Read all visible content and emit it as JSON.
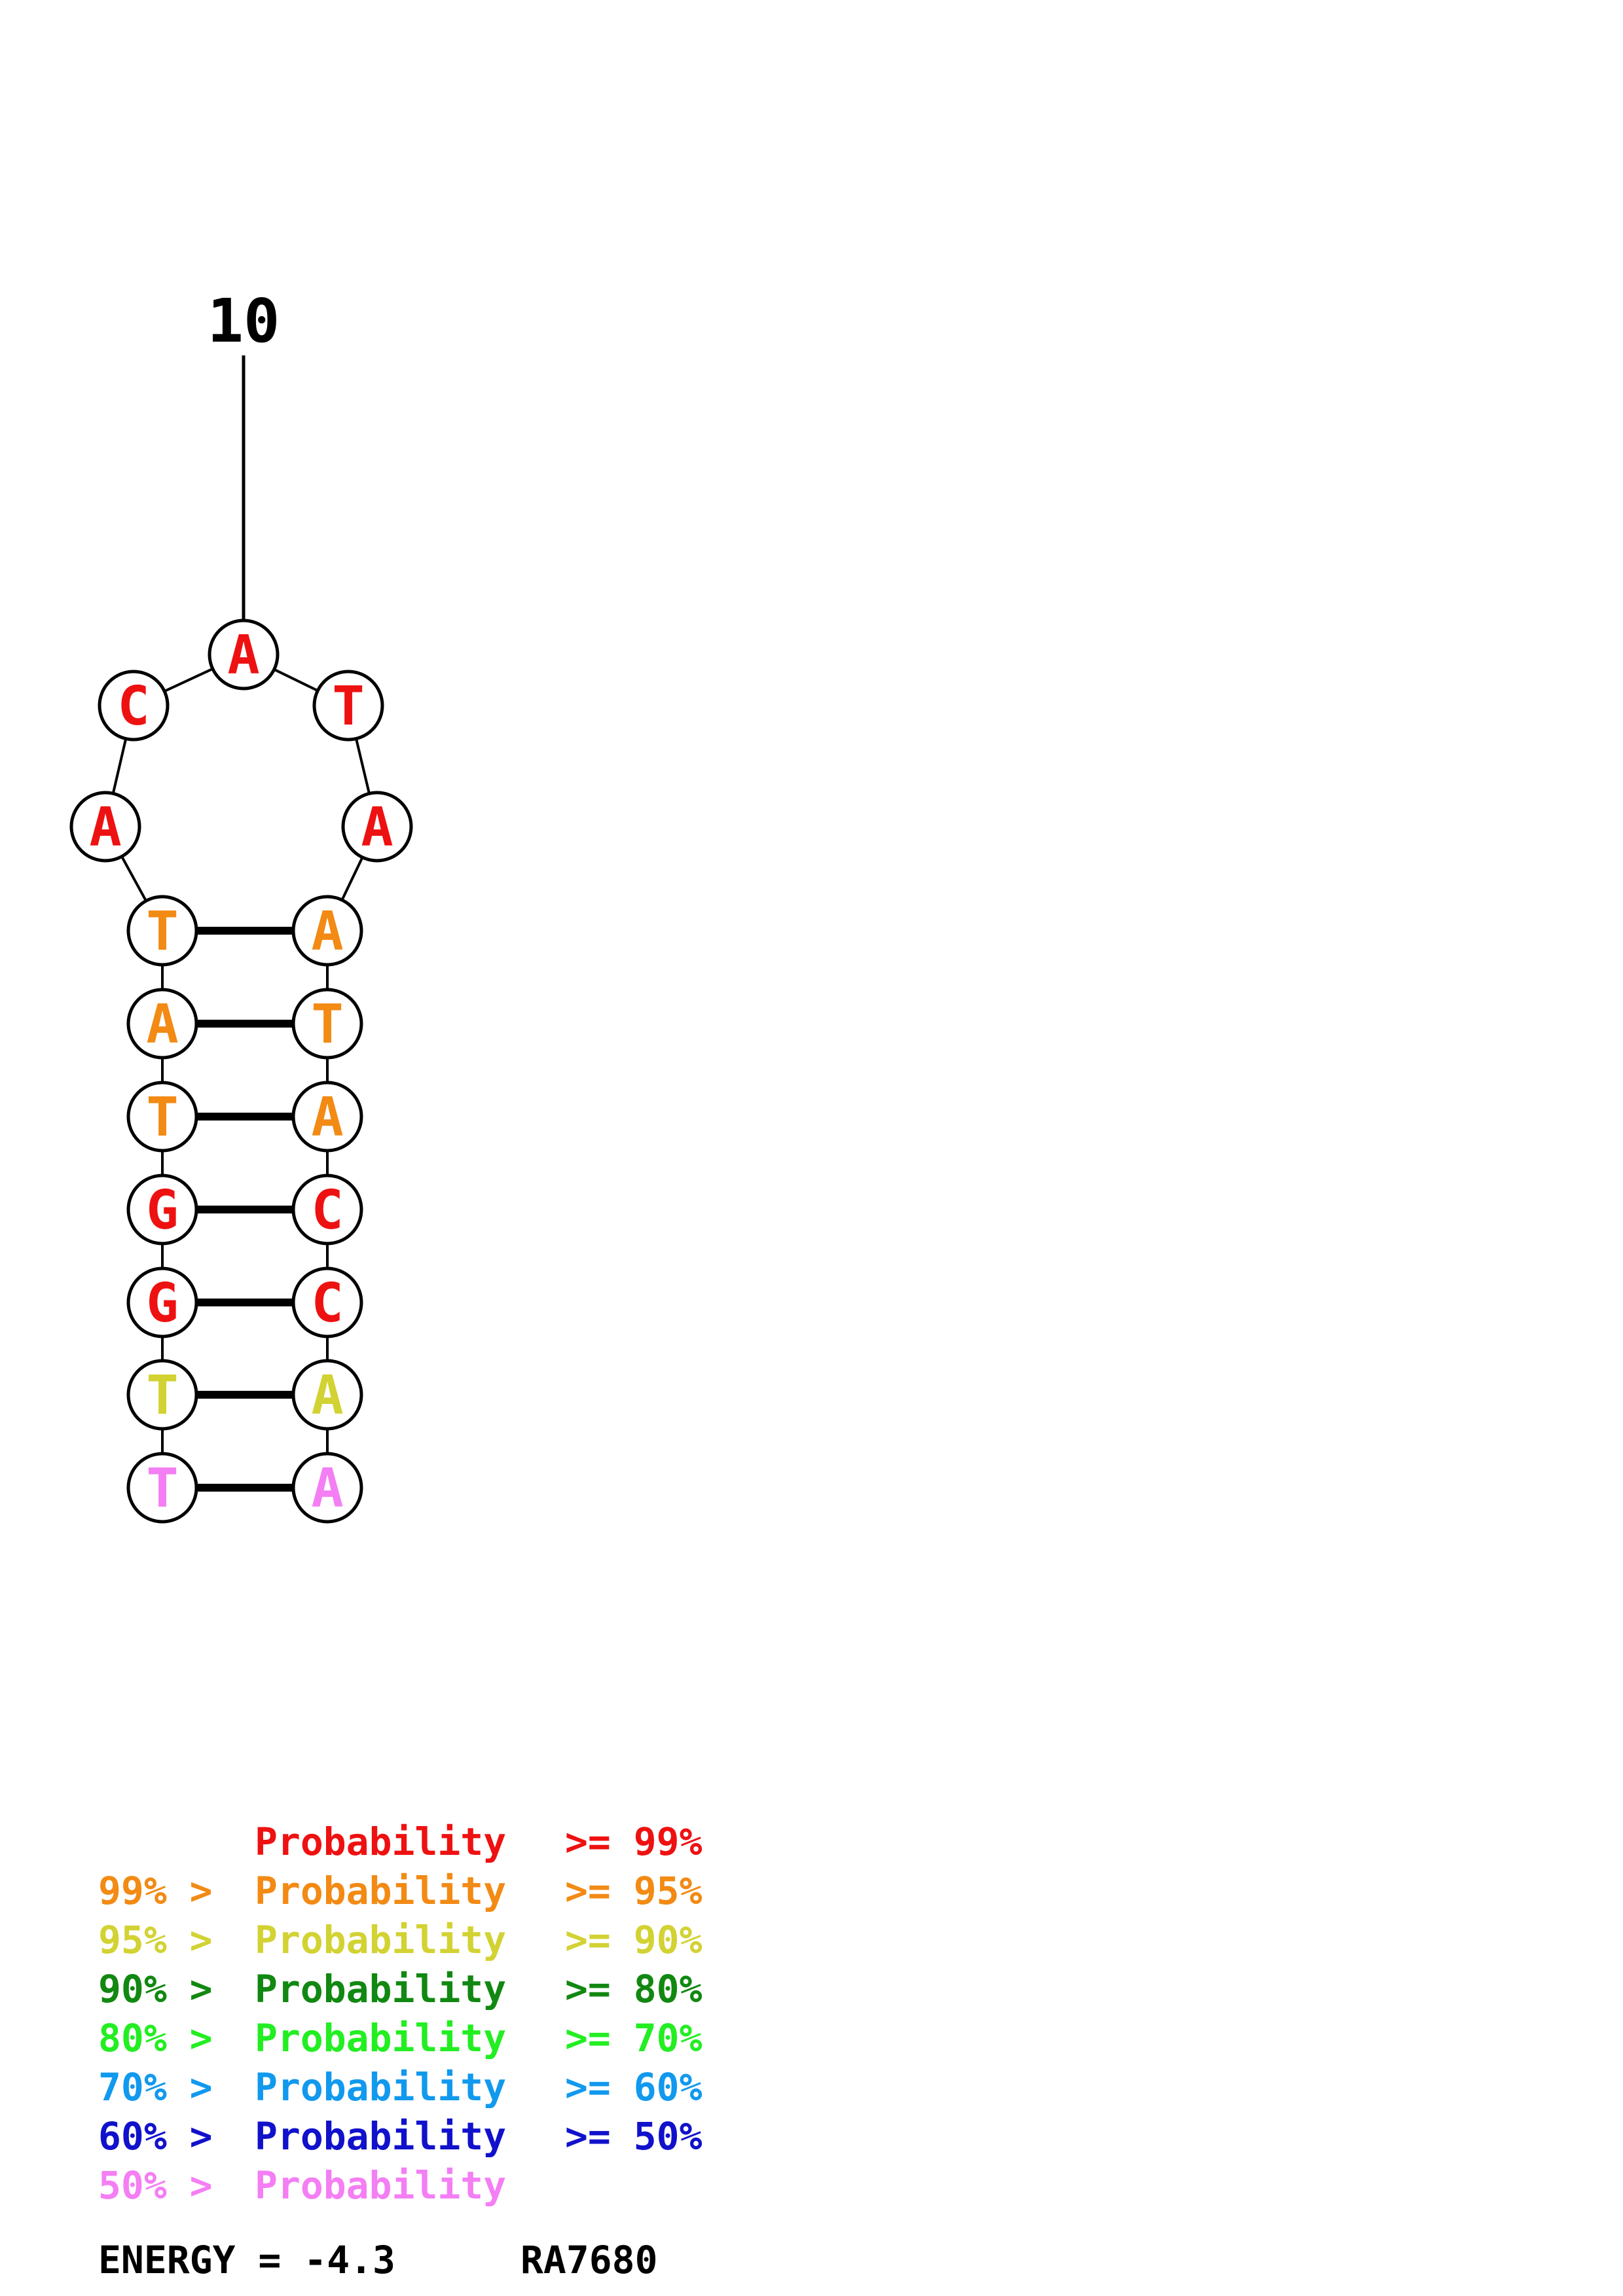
{
  "colors": {
    "p99": "#ee1111",
    "p95": "#f28a14",
    "p90": "#d2d233",
    "p80": "#118811",
    "p70": "#22ee22",
    "p60": "#1199ee",
    "p50": "#1111cc",
    "plow": "#f47ef4",
    "ink": "#000000"
  },
  "position_label": "10",
  "nucleotides": [
    {
      "base": "T",
      "color": "plow"
    },
    {
      "base": "T",
      "color": "p90"
    },
    {
      "base": "G",
      "color": "p99"
    },
    {
      "base": "G",
      "color": "p99"
    },
    {
      "base": "T",
      "color": "p95"
    },
    {
      "base": "A",
      "color": "p95"
    },
    {
      "base": "T",
      "color": "p95"
    },
    {
      "base": "A",
      "color": "p99"
    },
    {
      "base": "C",
      "color": "p99"
    },
    {
      "base": "A",
      "color": "p99"
    },
    {
      "base": "T",
      "color": "p99"
    },
    {
      "base": "A",
      "color": "p99"
    },
    {
      "base": "A",
      "color": "p95"
    },
    {
      "base": "T",
      "color": "p95"
    },
    {
      "base": "A",
      "color": "p95"
    },
    {
      "base": "C",
      "color": "p99"
    },
    {
      "base": "C",
      "color": "p99"
    },
    {
      "base": "A",
      "color": "p90"
    },
    {
      "base": "A",
      "color": "plow"
    }
  ],
  "pairs": [
    [
      1,
      19
    ],
    [
      2,
      18
    ],
    [
      3,
      17
    ],
    [
      4,
      16
    ],
    [
      5,
      15
    ],
    [
      6,
      14
    ],
    [
      7,
      13
    ]
  ],
  "legend": [
    {
      "prefix": "",
      "label": "Probability",
      "suffix": ">= 99%",
      "color": "p99"
    },
    {
      "prefix": "99% >",
      "label": "Probability",
      "suffix": ">= 95%",
      "color": "p95"
    },
    {
      "prefix": "95% >",
      "label": "Probability",
      "suffix": ">= 90%",
      "color": "p90"
    },
    {
      "prefix": "90% >",
      "label": "Probability",
      "suffix": ">= 80%",
      "color": "p80"
    },
    {
      "prefix": "80% >",
      "label": "Probability",
      "suffix": ">= 70%",
      "color": "p70"
    },
    {
      "prefix": "70% >",
      "label": "Probability",
      "suffix": ">= 60%",
      "color": "p60"
    },
    {
      "prefix": "60% >",
      "label": "Probability",
      "suffix": ">= 50%",
      "color": "p50"
    },
    {
      "prefix": "50% >",
      "label": "Probability",
      "suffix": "",
      "color": "plow"
    }
  ],
  "energy": {
    "label": "ENERGY = -4.3",
    "id": "RA7680"
  }
}
